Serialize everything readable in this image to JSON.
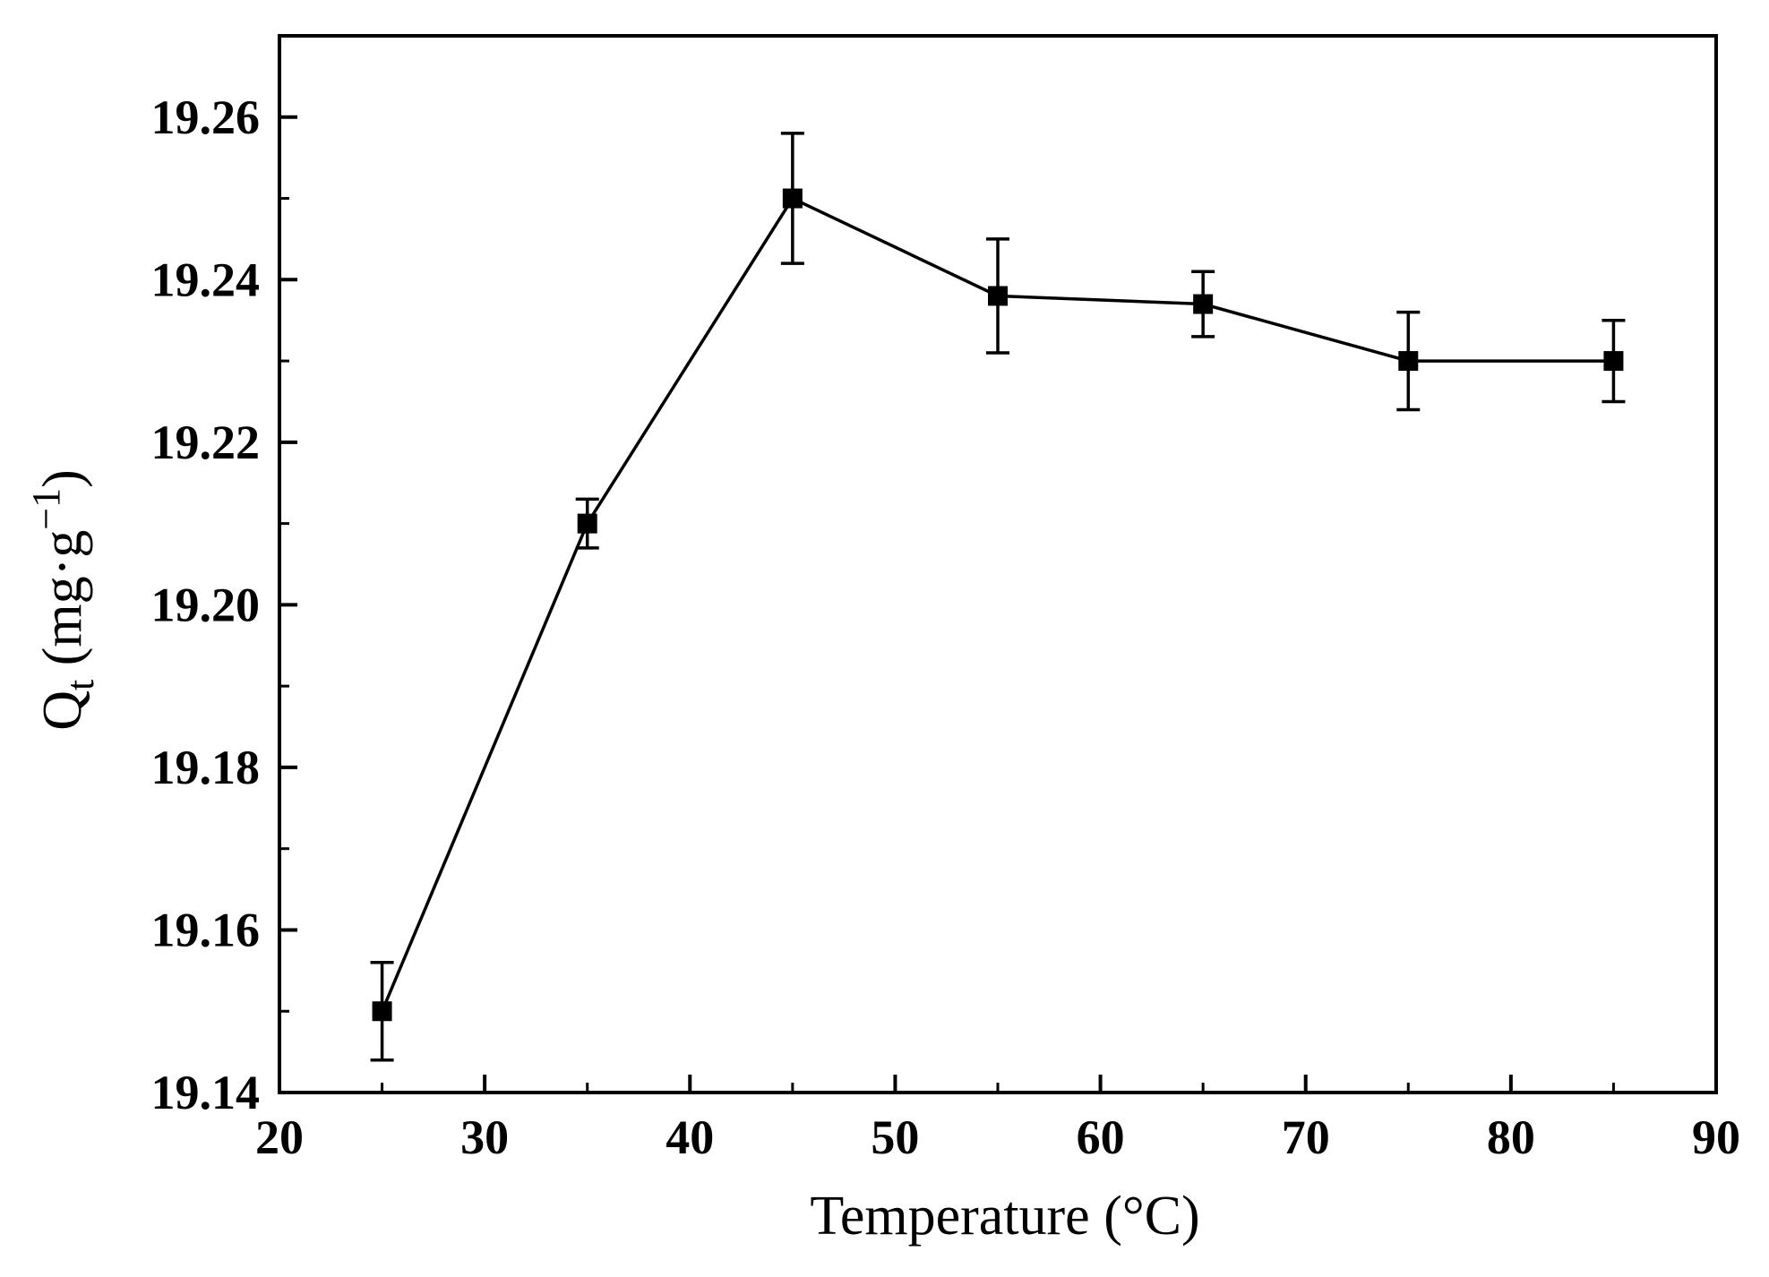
{
  "chart_data": {
    "type": "line",
    "title": "",
    "xlabel": "Temperature (°C)",
    "ylabel": {
      "prefix": "Q",
      "sub": "t",
      "unit_open": " (mg·g",
      "sup": "−1",
      "unit_close": ")"
    },
    "xlim": [
      20,
      90
    ],
    "ylim": [
      19.14,
      19.27
    ],
    "x_ticks": [
      20,
      30,
      40,
      50,
      60,
      70,
      80,
      90
    ],
    "x_tick_labels": [
      "20",
      "30",
      "40",
      "50",
      "60",
      "70",
      "80",
      "90"
    ],
    "y_ticks": [
      19.14,
      19.16,
      19.18,
      19.2,
      19.22,
      19.24,
      19.26
    ],
    "y_tick_labels": [
      "19.14",
      "19.16",
      "19.18",
      "19.20",
      "19.22",
      "19.24",
      "19.26"
    ],
    "grid": false,
    "series": [
      {
        "name": "Qt",
        "marker": "square",
        "color": "#000000",
        "x": [
          25,
          35,
          45,
          55,
          65,
          75,
          85
        ],
        "y": [
          19.15,
          19.21,
          19.25,
          19.238,
          19.237,
          19.23,
          19.23
        ],
        "err": [
          0.006,
          0.003,
          0.008,
          0.007,
          0.004,
          0.006,
          0.005
        ]
      }
    ]
  }
}
